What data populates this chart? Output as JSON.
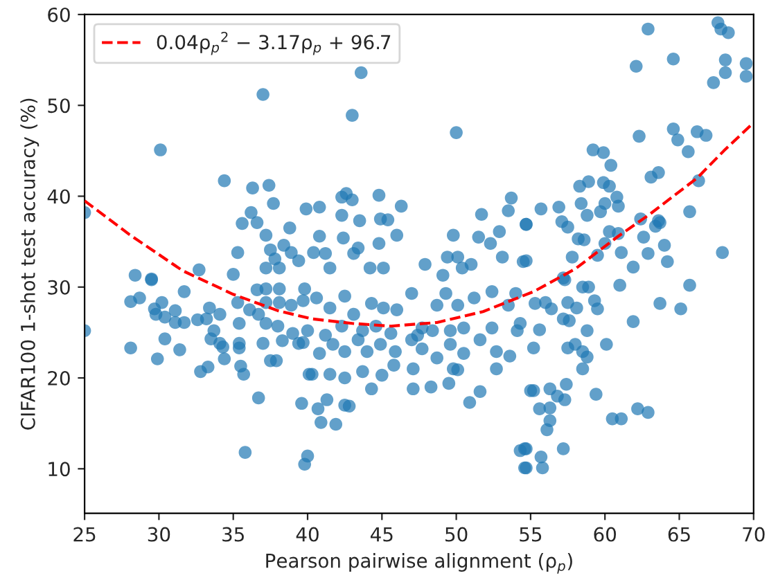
{
  "chart_data": {
    "type": "scatter",
    "xlabel": "Pearson pairwise alignment (ρ$_{p}$)",
    "ylabel": "CIFAR100 1-shot test accuracy (%)",
    "xlim": [
      25,
      70
    ],
    "xticks": [
      25,
      30,
      35,
      40,
      45,
      50,
      55,
      60,
      65,
      70
    ],
    "ylim": [
      5.1,
      60
    ],
    "yticks": [
      10,
      20,
      30,
      40,
      50,
      60
    ],
    "grid": false,
    "legend": "top left",
    "marker": "circle",
    "series": [
      {
        "color": "#1f77b4",
        "x": [
          37.0,
          30.1,
          43.6,
          43.0,
          50.0,
          62.9,
          67.6,
          67.8,
          68.3,
          64.6,
          62.1,
          68.1,
          68.1,
          67.3,
          69.5,
          69.5,
          62.3,
          64.6,
          64.9,
          66.2,
          66.8,
          65.6,
          59.2,
          59.9,
          60.4,
          63.1,
          63.6,
          66.3,
          58.3,
          58.9,
          59.9,
          60.3,
          65.7,
          62.4,
          63.4,
          63.7,
          58.4,
          60.0,
          60.8,
          60.9,
          55.7,
          56.9,
          57.1,
          57.5,
          58.8,
          59.7,
          60.3,
          60.9,
          60.0,
          58.2,
          58.6,
          62.6,
          63.6,
          64.0,
          57.8,
          59.5,
          61.1,
          62.9,
          64.2,
          61.9,
          67.9,
          54.7,
          54.7,
          57.3,
          58.5,
          58.9,
          61.0,
          65.7,
          55.3,
          56.0,
          56.4,
          57.5,
          58.1,
          59.3,
          59.5,
          63.7,
          65.1,
          57.2,
          57.6,
          61.9,
          55.6,
          58.8,
          55.2,
          57.5,
          58.0,
          58.5,
          58.8,
          60.1,
          58.5,
          55.2,
          56.3,
          57.4,
          56.8,
          57.3,
          55.6,
          56.3,
          59.4,
          56.3,
          56.1,
          60.5,
          61.1,
          62.2,
          62.9,
          57.2,
          54.7,
          55.7,
          54.7,
          55.8,
          54.3,
          54.6,
          54.6,
          39.8,
          40.0,
          40.7,
          40.9,
          41.9,
          41.3,
          42.5,
          42.8,
          39.6,
          44.3,
          47.1,
          48.3,
          49.5,
          50.9,
          51.6,
          47.1,
          45.0,
          43.7,
          40.3,
          41.5,
          42.5,
          45.8,
          49.8,
          50.1,
          52.7,
          55.0,
          39.7,
          40.8,
          41.7,
          42.5,
          43.4,
          44.0,
          44.9,
          45.9,
          47.0,
          47.7,
          48.7,
          49.6,
          50.5,
          51.6,
          52.7,
          53.6,
          54.1,
          39.8,
          40.6,
          41.5,
          42.5,
          43.1,
          44.3,
          45.1,
          46.0,
          47.0,
          47.7,
          48.7,
          49.3,
          50.1,
          51.2,
          52.4,
          53.5,
          54.0,
          54.3,
          52.4,
          40.0,
          41.2,
          42.3,
          43.7,
          44.6,
          45.6,
          47.4,
          48.4,
          49.6,
          50.5,
          39.9,
          40.8,
          42.3,
          42.6,
          43.0,
          44.8,
          46.3,
          42.3,
          43.5,
          44.9,
          45.4,
          46.0,
          40.8,
          42.4,
          44.8,
          43.4,
          40.4,
          41.2,
          43.1,
          41.5,
          44.2,
          45.1,
          47.9,
          49.8,
          49.4,
          50.1,
          50.4,
          51.0,
          51.7,
          51.5,
          52.3,
          52.9,
          53.5,
          53.7,
          54.7,
          53.1,
          54.5,
          49.1,
          34.4,
          36.3,
          37.4,
          37.7,
          36.2,
          35.6,
          36.6,
          38.8,
          37.2,
          35.3,
          38.4,
          37.5,
          38.9,
          39.4,
          37.8,
          37.2,
          38.1,
          32.7,
          28.4,
          29.5,
          35.0,
          25.0,
          29.5,
          31.7,
          28.1,
          28.7,
          29.7,
          30.2,
          29.8,
          30.4,
          31.1,
          31.1,
          31.7,
          32.6,
          33.4,
          33.2,
          34.1,
          35.3,
          35.4,
          33.7,
          33.5,
          34.1,
          34.3,
          34.4,
          35.4,
          35.4,
          35.5,
          35.7,
          32.8,
          33.3,
          28.1,
          29.9,
          30.4,
          31.4,
          36.7,
          35.8,
          40.1,
          37.0,
          37.5,
          37.9,
          38.3,
          39.4,
          39.0,
          36.1,
          36.7,
          37.2,
          38.0,
          36.6,
          37.2,
          38.1,
          37.2,
          38.1,
          38.9,
          39.7,
          25.0,
          57.2
        ],
        "values": [
          51.2,
          45.1,
          53.6,
          48.9,
          47.0,
          58.4,
          59.1,
          58.4,
          58.0,
          55.1,
          54.3,
          55.0,
          53.6,
          52.5,
          54.6,
          53.2,
          46.6,
          47.4,
          46.2,
          47.1,
          46.7,
          44.9,
          45.1,
          44.8,
          43.4,
          42.1,
          42.6,
          41.7,
          41.1,
          41.6,
          41.5,
          41.1,
          38.3,
          37.5,
          36.7,
          37.1,
          39.2,
          39.2,
          39.9,
          38.9,
          38.6,
          38.8,
          37.2,
          36.6,
          37.9,
          38.3,
          36.1,
          35.9,
          34.8,
          35.3,
          35.2,
          35.5,
          37.3,
          34.6,
          33.3,
          33.5,
          33.8,
          33.7,
          32.8,
          32.2,
          33.8,
          36.9,
          32.9,
          30.8,
          30.0,
          30.0,
          30.2,
          30.2,
          28.2,
          28.3,
          27.6,
          28.3,
          27.7,
          28.5,
          27.6,
          28.2,
          27.6,
          26.5,
          26.3,
          26.2,
          25.3,
          25.2,
          23.3,
          23.3,
          23.7,
          22.9,
          22.3,
          23.7,
          21.0,
          18.6,
          18.8,
          19.3,
          18.0,
          17.6,
          16.6,
          16.7,
          18.2,
          15.3,
          14.3,
          15.5,
          15.5,
          16.6,
          16.2,
          12.2,
          12.2,
          11.3,
          10.1,
          10.1,
          12.0,
          12.2,
          10.1,
          10.5,
          11.4,
          16.6,
          15.1,
          14.9,
          17.6,
          17.0,
          16.9,
          17.2,
          18.8,
          18.8,
          19.0,
          19.4,
          17.3,
          18.5,
          21.0,
          20.3,
          20.7,
          20.4,
          20.4,
          20.0,
          21.4,
          21.0,
          20.9,
          21.0,
          18.6,
          23.9,
          22.7,
          23.7,
          22.9,
          24.2,
          22.9,
          23.7,
          22.9,
          24.2,
          23.2,
          22.2,
          23.7,
          22.7,
          24.2,
          22.9,
          22.4,
          25.2,
          29.8,
          28.8,
          27.7,
          29.0,
          27.0,
          28.2,
          27.7,
          27.5,
          29.3,
          25.5,
          28.0,
          29.3,
          28.0,
          28.8,
          29.5,
          28.0,
          29.3,
          26.0,
          25.5,
          25.2,
          24.7,
          25.7,
          25.2,
          25.7,
          24.9,
          24.7,
          25.2,
          25.2,
          25.5,
          38.6,
          38.8,
          39.9,
          40.3,
          39.6,
          40.1,
          38.9,
          37.9,
          37.3,
          37.5,
          37.4,
          35.7,
          35.6,
          35.4,
          34.8,
          34.3,
          33.8,
          33.7,
          33.7,
          32.1,
          32.1,
          32.1,
          32.5,
          35.7,
          33.3,
          33.3,
          32.1,
          32.5,
          38.0,
          35.5,
          34.8,
          36.1,
          38.4,
          39.8,
          36.9,
          33.3,
          32.8,
          31.3,
          41.7,
          40.9,
          41.2,
          39.2,
          38.2,
          37.0,
          37.1,
          36.5,
          35.7,
          33.8,
          34.6,
          34.1,
          33.8,
          32.9,
          33.1,
          32.1,
          32.1,
          31.9,
          31.3,
          30.9,
          31.4,
          38.2,
          30.8,
          29.5,
          28.4,
          28.8,
          27.6,
          28.3,
          27.0,
          26.7,
          27.4,
          26.1,
          26.1,
          26.4,
          27.7,
          26.5,
          27.0,
          28.3,
          26.0,
          25.2,
          24.3,
          23.8,
          23.4,
          22.1,
          23.8,
          23.3,
          21.3,
          20.4,
          20.7,
          21.2,
          23.3,
          22.1,
          24.3,
          23.1,
          17.8,
          11.8,
          20.4,
          23.8,
          21.9,
          21.9,
          24.1,
          23.8,
          24.9,
          27.5,
          27.0,
          26.0,
          25.7,
          29.7,
          29.8,
          29.8,
          28.3,
          28.3,
          28.0,
          28.5,
          25.2,
          31.0
        ]
      },
      {
        "type": "line",
        "name": "0.04ρ$_{p}$$^{2}$ − 3.17ρ$_{p}$ + 96.7",
        "color": "#ff0000",
        "line_style": "dashed",
        "marker": "none",
        "x": [
          25,
          28,
          31.6,
          35,
          38,
          40.3,
          43,
          45.6,
          48.7,
          51.8,
          55.2,
          58,
          60.9,
          63,
          66.2,
          68,
          70
        ],
        "values": [
          39.5,
          35.8,
          31.8,
          29.2,
          27.4,
          26.5,
          26.0,
          25.7,
          26.1,
          27.3,
          29.5,
          32.0,
          35.6,
          38.0,
          42.0,
          45.0,
          48.1
        ]
      }
    ]
  }
}
